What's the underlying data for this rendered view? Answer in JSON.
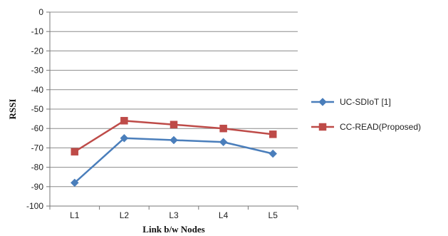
{
  "chart_data": {
    "type": "line",
    "title": "",
    "xlabel": "Link b/w Nodes",
    "ylabel": "RSSI",
    "categories": [
      "L1",
      "L2",
      "L3",
      "L4",
      "L5"
    ],
    "ylim": [
      -100,
      0
    ],
    "ytick_step": 10,
    "yticks": [
      "0",
      "-10",
      "-20",
      "-30",
      "-40",
      "-50",
      "-60",
      "-70",
      "-80",
      "-90",
      "-100"
    ],
    "grid": true,
    "legend_position": "right",
    "series": [
      {
        "name": "UC-SDIoT [1]",
        "values": [
          -88,
          -65,
          -66,
          -67,
          -73
        ],
        "color": "#4a7ebb",
        "marker": "diamond"
      },
      {
        "name": "CC-READ(Proposed)",
        "values": [
          -72,
          -56,
          -58,
          -60,
          -63
        ],
        "color": "#be4b48",
        "marker": "square"
      }
    ]
  }
}
